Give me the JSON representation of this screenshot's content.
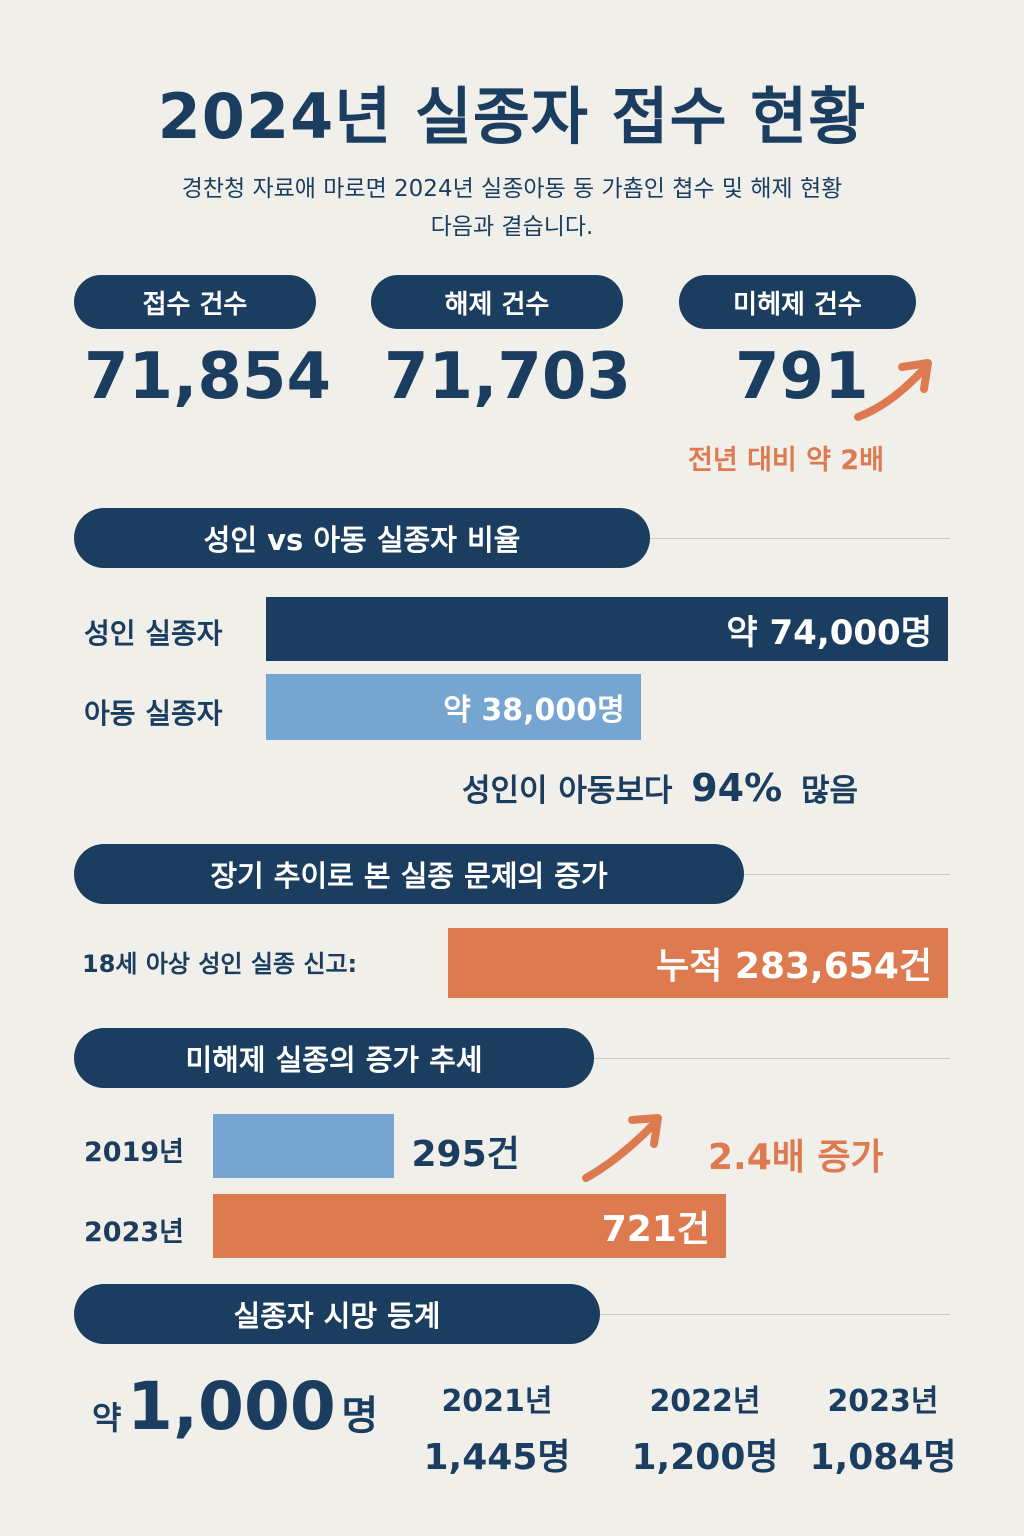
{
  "title": "2024년 실종자 접수 현황",
  "subtitle_line1": "경찬청 자료애 마로면 2024년 실종아동 동 가춈인 쳡수 및 해제 현황",
  "subtitle_line2": "다음과 곁습니다.",
  "stats": {
    "received": {
      "label": "접수 건수",
      "value": "71,854"
    },
    "released": {
      "label": "해제 건수",
      "value": "71,703"
    },
    "unreleased": {
      "label": "미헤제 건수",
      "value": "791",
      "note": "전년 대비 약 2배"
    }
  },
  "ratio_section": {
    "title": "성인 vs 아동 실종자 비율",
    "adult_label": "성인 실종자",
    "child_label": "아동 실종자",
    "conclusion_prefix": "성인이 아동보다",
    "conclusion_value": "94%",
    "conclusion_suffix": "많음"
  },
  "trend_section": {
    "title": "장기 추이로 본 실종 문제의 증가",
    "label": "18세 아상 성인 실종 신고:",
    "value": "누적 283,654건"
  },
  "unreleased_section": {
    "title": "미해제 실종의 증가 추세",
    "increase_label": "2.4배 증가"
  },
  "death_section": {
    "title": "실종자 시망 등계",
    "total_prefix": "약",
    "total_value": "1,000",
    "total_suffix": "명",
    "years": [
      {
        "year": "2021년",
        "value": "1,445명"
      },
      {
        "year": "2022년",
        "value": "1,200명"
      },
      {
        "year": "2023년",
        "value": "1,084명"
      }
    ]
  },
  "colors": {
    "navy": "#1b3d5f",
    "light_blue": "#76a5cf",
    "orange": "#de7a4f",
    "background": "#f1efea"
  },
  "chart_data": [
    {
      "type": "bar",
      "categories": [
        "성인 실종자",
        "아동 실종자"
      ],
      "values": [
        74000,
        38000
      ],
      "value_labels": [
        "약 74,000명",
        "약 38,000명"
      ]
    },
    {
      "type": "bar",
      "categories": [
        "2019년",
        "2023년"
      ],
      "values": [
        295,
        721
      ],
      "value_labels": [
        "295건",
        "721건"
      ]
    }
  ]
}
